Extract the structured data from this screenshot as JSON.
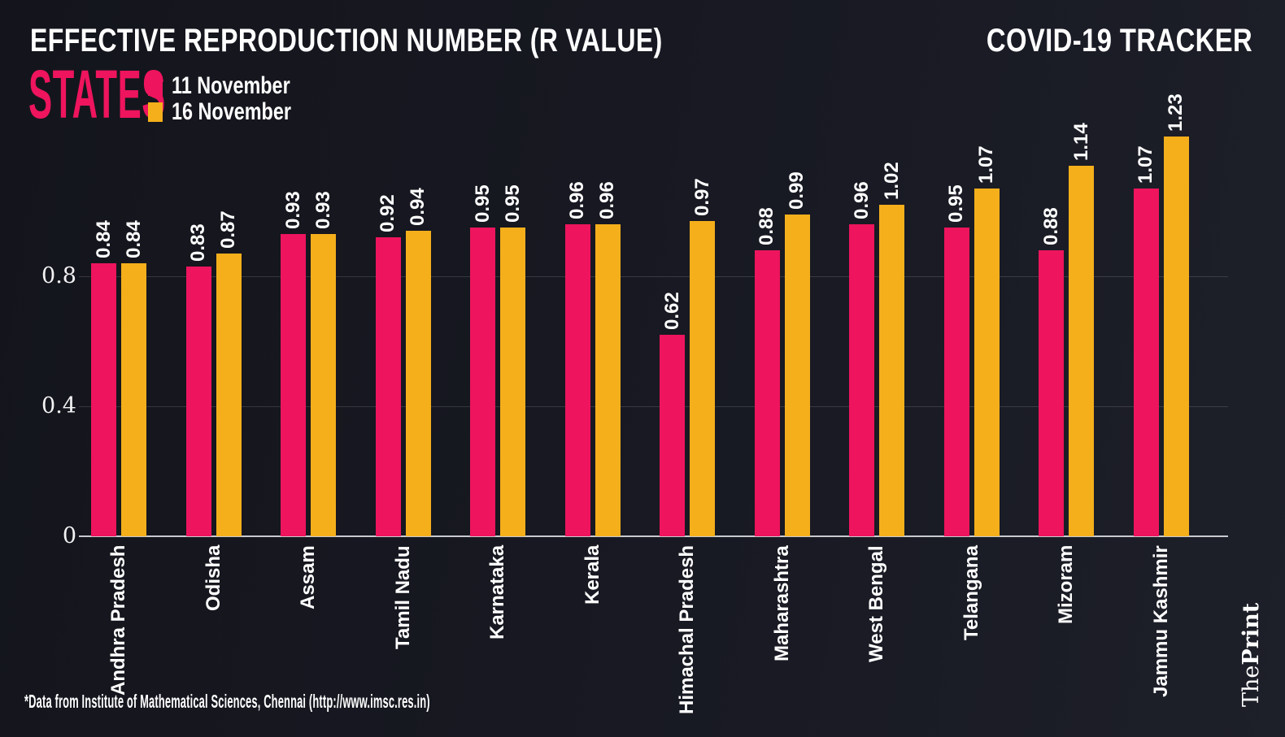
{
  "header": {
    "title": "EFFECTIVE REPRODUCTION NUMBER (R VALUE)",
    "tracker_label": "COVID-19 TRACKER",
    "subtitle": "STATES"
  },
  "legend": [
    {
      "label": "11 November",
      "color": "#EE145D"
    },
    {
      "label": "16 November",
      "color": "#F4AF1B"
    }
  ],
  "colors": {
    "background": "#171821",
    "pink": "#EE145D",
    "yellow": "#F4AF1B",
    "text": "#FFFFFF",
    "gridline": "rgba(255,255,255,0.14)",
    "axis": "#C9CAD0"
  },
  "footer": {
    "source": "*Data from Institute of Mathematical Sciences, Chennai (http://www.imsc.res.in)",
    "brand_the": "The",
    "brand_print": "Print"
  },
  "chart_data": {
    "type": "bar",
    "title": "EFFECTIVE REPRODUCTION NUMBER (R VALUE)",
    "categories": [
      "Andhra Pradesh",
      "Odisha",
      "Assam",
      "Tamil Nadu",
      "Karnataka",
      "Kerala",
      "Himachal Pradesh",
      "Maharashtra",
      "West Bengal",
      "Telangana",
      "Mizoram",
      "Jammu Kashmir"
    ],
    "series": [
      {
        "name": "11 November",
        "color": "#EE145D",
        "values": [
          0.84,
          0.83,
          0.93,
          0.92,
          0.95,
          0.96,
          0.62,
          0.88,
          0.96,
          0.95,
          0.88,
          1.07
        ]
      },
      {
        "name": "16 November",
        "color": "#F4AF1B",
        "values": [
          0.84,
          0.87,
          0.93,
          0.94,
          0.95,
          0.96,
          0.97,
          0.99,
          1.02,
          1.07,
          1.14,
          1.23
        ]
      }
    ],
    "xlabel": "",
    "ylabel": "",
    "ylim": [
      0,
      1.3
    ],
    "yticks": [
      {
        "label": "0",
        "value": 0
      },
      {
        "label": "0.4",
        "value": 0.4
      },
      {
        "label": "0.8",
        "value": 0.8
      }
    ],
    "grid": "horizontal",
    "legend_position": "top-left",
    "bar_value_labels": "rotated-90"
  }
}
